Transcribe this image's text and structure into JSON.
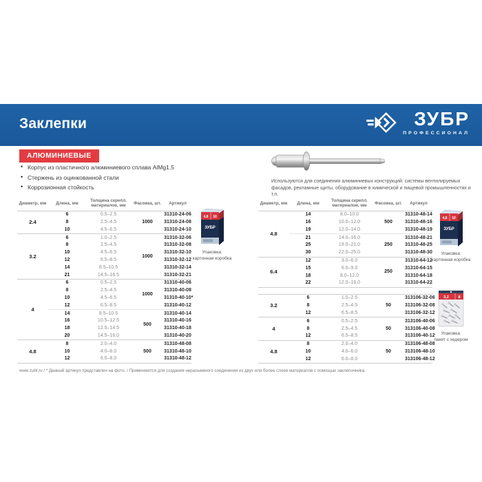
{
  "header": {
    "title": "Заклепки",
    "brand": "ЗУБР",
    "brand_sub": "ПРОФЕССИОНАЛ"
  },
  "badge_label": "АЛЮМИНИЕВЫЕ",
  "features": [
    "Корпус из пластичного алюминиевого сплава AlMg1.5",
    "Стержень из оцинкованной стали",
    "Коррозионная стойкость"
  ],
  "description": "Используются для соединения алюминиевых конструкций: системы вентилируемых фасадов, рекламные щиты, оборудование в химической и пищевой промышленностях и т.п.",
  "table_headers": [
    "Диаметр, мм",
    "Длина, мм",
    "Толщина скрепл. материалов, мм",
    "Фасовка, шт.",
    "Артикул"
  ],
  "tables": {
    "left": {
      "groups": [
        {
          "diameter": "2.4",
          "subs": [
            {
              "pack": "1000",
              "rows": [
                [
                  "6",
                  "0.5–2.5",
                  "31310-24-06"
                ],
                [
                  "8",
                  "2.5–4.5",
                  "31310-24-08"
                ],
                [
                  "10",
                  "4.5–6.5",
                  "31310-24-10"
                ]
              ]
            }
          ]
        },
        {
          "diameter": "3.2",
          "subs": [
            {
              "pack": "1000",
              "rows": [
                [
                  "6",
                  "1.0–2.5",
                  "31310-32-06"
                ],
                [
                  "8",
                  "2.5–4.5",
                  "31310-32-08"
                ],
                [
                  "10",
                  "4.5–6.5",
                  "31310-32-10"
                ],
                [
                  "12",
                  "6.5–8.5",
                  "31310-32-12"
                ],
                [
                  "14",
                  "8.5–10.5",
                  "31310-32-14"
                ],
                [
                  "21",
                  "14.5–16.5",
                  "31310-32-21"
                ]
              ]
            }
          ]
        },
        {
          "diameter": "4",
          "subs": [
            {
              "pack": "1000",
              "rows": [
                [
                  "6",
                  "0.5–2.5",
                  "31310-40-06"
                ],
                [
                  "8",
                  "2.5–4.5",
                  "31310-40-08"
                ],
                [
                  "10",
                  "4.5–6.5",
                  "31310-40-10*"
                ],
                [
                  "12",
                  "6.5–8.5",
                  "31310-40-12"
                ]
              ]
            },
            {
              "pack": "500",
              "rows": [
                [
                  "14",
                  "8.5–10.5",
                  "31310-40-14"
                ],
                [
                  "16",
                  "10.5–12.5",
                  "31310-40-16"
                ],
                [
                  "18",
                  "12.5–14.5",
                  "31310-40-18"
                ],
                [
                  "20",
                  "14.5–16.0",
                  "31310-40-20"
                ]
              ]
            }
          ]
        },
        {
          "diameter": "4.8",
          "subs": [
            {
              "pack": "500",
              "rows": [
                [
                  "8",
                  "2.0–4.0",
                  "31310-48-08"
                ],
                [
                  "10",
                  "4.0–6.0",
                  "31310-48-10"
                ],
                [
                  "12",
                  "6.0–8.0",
                  "31310-48-12"
                ]
              ]
            }
          ]
        }
      ]
    },
    "right_top": {
      "groups": [
        {
          "diameter": "4.8",
          "subs": [
            {
              "pack": "500",
              "rows": [
                [
                  "14",
                  "8.0–10.0",
                  "31310-48-14"
                ],
                [
                  "16",
                  "10.0–12.0",
                  "31310-48-16"
                ],
                [
                  "19",
                  "12.0–14.0",
                  "31310-48-19"
                ]
              ]
            },
            {
              "pack": "250",
              "rows": [
                [
                  "21",
                  "14.0–16.0",
                  "31310-48-21"
                ],
                [
                  "25",
                  "19.0–21.0",
                  "31310-48-25"
                ],
                [
                  "30",
                  "22.0–25.0",
                  "31310-48-30"
                ]
              ]
            }
          ]
        },
        {
          "diameter": "6.4",
          "subs": [
            {
              "pack": "250",
              "rows": [
                [
                  "12",
                  "3.0–6.0",
                  "31310-64-12"
                ],
                [
                  "15",
                  "6.0–9.0",
                  "31310-64-15"
                ],
                [
                  "18",
                  "8.0–12.0",
                  "31310-64-18"
                ],
                [
                  "22",
                  "12.0–16.0",
                  "31310-64-22"
                ]
              ]
            }
          ]
        }
      ]
    },
    "right_bottom": {
      "groups": [
        {
          "diameter": "3.2",
          "subs": [
            {
              "pack": "50",
              "rows": [
                [
                  "6",
                  "1.0–2.5",
                  "313106-32-06"
                ],
                [
                  "8",
                  "2.5–4.5",
                  "313106-32-08"
                ],
                [
                  "12",
                  "6.5–8.5",
                  "313106-32-12"
                ]
              ]
            }
          ]
        },
        {
          "diameter": "4",
          "subs": [
            {
              "pack": "50",
              "rows": [
                [
                  "6",
                  "0.5–2.5",
                  "313106-40-06"
                ],
                [
                  "8",
                  "2.5–4.5",
                  "313106-40-08"
                ],
                [
                  "12",
                  "6.5–8.5",
                  "313106-40-12"
                ]
              ]
            }
          ]
        },
        {
          "diameter": "4.8",
          "subs": [
            {
              "pack": "50",
              "rows": [
                [
                  "8",
                  "2.0–4.0",
                  "313106-48-08"
                ],
                [
                  "10",
                  "4.0–6.0",
                  "313106-48-10"
                ],
                [
                  "12",
                  "6.0–8.0",
                  "313106-48-12"
                ]
              ]
            }
          ]
        }
      ]
    }
  },
  "packaging": {
    "box_left": {
      "caption_line1": "Упаковка:",
      "caption_line2": "картонная коробка"
    },
    "box_right": {
      "caption_line1": "Упаковка:",
      "caption_line2": "картонная коробка"
    },
    "bag_right": {
      "caption_line1": "Упаковка:",
      "caption_line2": "пакет с хедером"
    },
    "box_labels": {
      "size": "4,8",
      "len": "10",
      "brand": "ЗУБР"
    },
    "bag_labels": {
      "size": "3,2",
      "len": "8"
    }
  },
  "footer_text": "www.zubr.ru   /   * Данный артикул представлен на фото.   /   Применяются для создания неразъемного соединения из двух или более слоев материалов с помощью заклепочника.",
  "colors": {
    "brand_blue": "#1b5a9e",
    "accent_red": "#e23c42"
  }
}
